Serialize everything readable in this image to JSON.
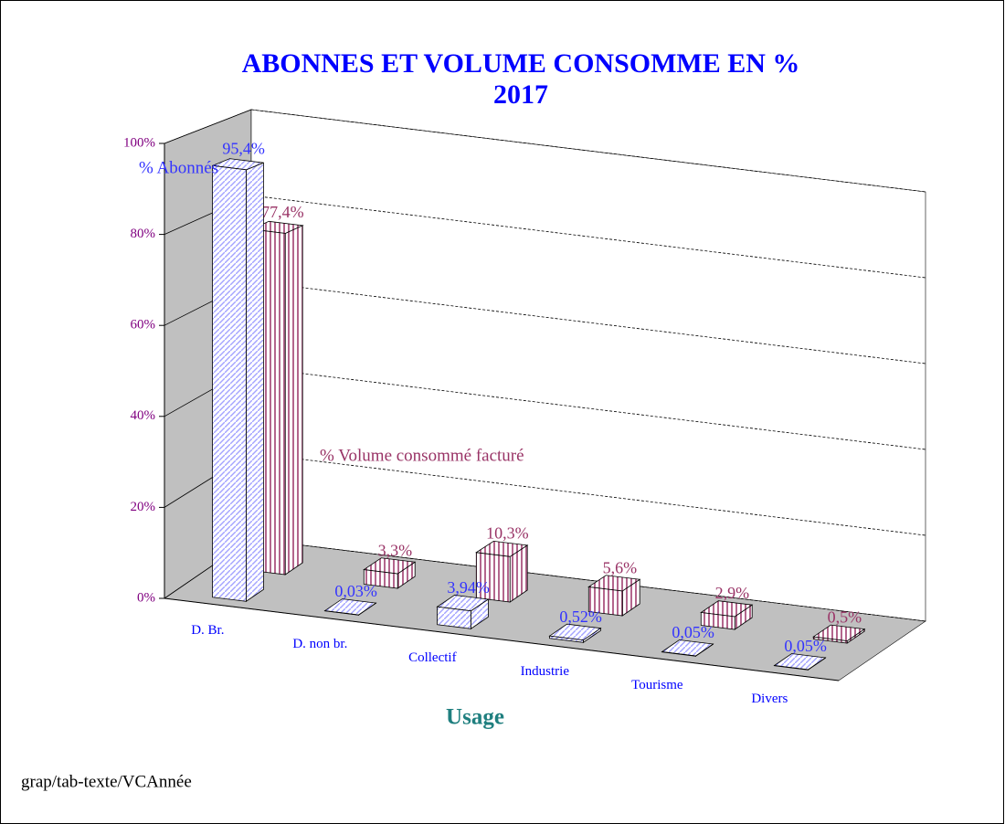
{
  "chart_data": {
    "type": "bar3d",
    "title": "ABONNES ET VOLUME CONSOMME EN %",
    "subtitle": "2017",
    "x_label": "Usage",
    "note": "grap/tab-texte/VCAnnée",
    "categories": [
      "D.  Br.",
      "D. non br.",
      "Collectif",
      "Industrie",
      "Tourisme",
      "Divers"
    ],
    "series": [
      {
        "name": "% Abonnés",
        "color": "#3333ff",
        "values": [
          95.4,
          0.03,
          3.94,
          0.52,
          0.05,
          0.05
        ],
        "value_labels": [
          "95,4%",
          "0,03%",
          "3,94%",
          "0,52%",
          "0,05%",
          "0,05%"
        ]
      },
      {
        "name": "% Volume consommé facturé",
        "color": "#993366",
        "values": [
          77.4,
          3.3,
          10.3,
          5.6,
          2.9,
          0.5
        ],
        "value_labels": [
          "77,4%",
          "3,3%",
          "10,3%",
          "5,6%",
          "2,9%",
          "0,5%"
        ]
      }
    ],
    "ylim": [
      0,
      100
    ],
    "yticks": [
      {
        "value": 0,
        "label": "0%"
      },
      {
        "value": 20,
        "label": "20%"
      },
      {
        "value": 40,
        "label": "40%"
      },
      {
        "value": 60,
        "label": "60%"
      },
      {
        "value": 80,
        "label": "80%"
      },
      {
        "value": 100,
        "label": "100%"
      }
    ],
    "grid": true
  }
}
